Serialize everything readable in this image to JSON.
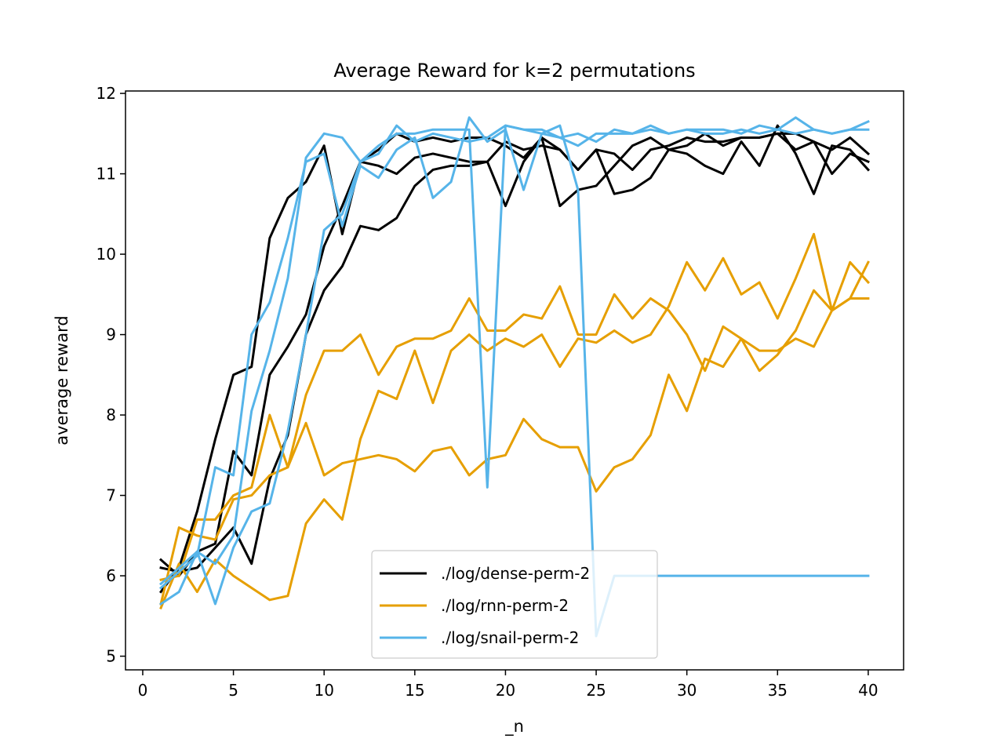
{
  "chart_data": {
    "type": "line",
    "title": "Average Reward for k=2 permutations",
    "xlabel": "_n",
    "ylabel": "average reward",
    "xlim": [
      -0.95,
      41.95
    ],
    "ylim": [
      4.83,
      12.03
    ],
    "xticks": [
      0,
      5,
      10,
      15,
      20,
      25,
      30,
      35,
      40
    ],
    "yticks": [
      5,
      6,
      7,
      8,
      9,
      10,
      11,
      12
    ],
    "grid": false,
    "legend_position": "lower center",
    "legend": [
      {
        "label": "./log/dense-perm-2",
        "color": "#000000"
      },
      {
        "label": "./log/rnn-perm-2",
        "color": "#E69F00"
      },
      {
        "label": "./log/snail-perm-2",
        "color": "#56B4E9"
      }
    ],
    "series": [
      {
        "legend_index": 0,
        "color": "#000000",
        "x": [
          1,
          2,
          3,
          4,
          5,
          6,
          7,
          8,
          9,
          10,
          11,
          12,
          13,
          14,
          15,
          16,
          17,
          18,
          19,
          20,
          21,
          22,
          23,
          24,
          25,
          26,
          27,
          28,
          29,
          30,
          31,
          32,
          33,
          34,
          35,
          36,
          37,
          38,
          39,
          40
        ],
        "y": [
          5.8,
          6.1,
          6.8,
          7.7,
          8.5,
          8.6,
          10.2,
          10.7,
          10.9,
          11.35,
          10.25,
          11.15,
          11.3,
          11.5,
          11.4,
          11.45,
          11.4,
          11.45,
          11.45,
          11.35,
          11.2,
          11.45,
          11.3,
          11.05,
          11.3,
          11.25,
          11.05,
          11.3,
          11.35,
          11.45,
          11.4,
          11.4,
          11.45,
          11.45,
          11.5,
          11.3,
          11.4,
          11.3,
          11.45,
          11.25
        ]
      },
      {
        "legend_index": 0,
        "color": "#000000",
        "x": [
          1,
          2,
          3,
          4,
          5,
          6,
          7,
          8,
          9,
          10,
          11,
          12,
          13,
          14,
          15,
          16,
          17,
          18,
          19,
          20,
          21,
          22,
          23,
          24,
          25,
          26,
          27,
          28,
          29,
          30,
          31,
          32,
          33,
          34,
          35,
          36,
          37,
          38,
          39,
          40
        ],
        "y": [
          6.2,
          6.0,
          6.3,
          6.4,
          7.55,
          7.25,
          8.5,
          8.85,
          9.25,
          10.1,
          10.6,
          11.15,
          11.1,
          11.0,
          11.2,
          11.25,
          11.2,
          11.15,
          11.15,
          10.6,
          11.15,
          11.45,
          10.6,
          10.8,
          10.85,
          11.1,
          11.35,
          11.45,
          11.3,
          11.25,
          11.1,
          11.0,
          11.4,
          11.1,
          11.6,
          11.25,
          10.75,
          11.35,
          11.3,
          11.05
        ]
      },
      {
        "legend_index": 0,
        "color": "#000000",
        "x": [
          1,
          2,
          3,
          4,
          5,
          6,
          7,
          8,
          9,
          10,
          11,
          12,
          13,
          14,
          15,
          16,
          17,
          18,
          19,
          20,
          21,
          22,
          23,
          24,
          25,
          26,
          27,
          28,
          29,
          30,
          31,
          32,
          33,
          34,
          35,
          36,
          37,
          38,
          39,
          40
        ],
        "y": [
          6.1,
          6.05,
          6.1,
          6.35,
          6.6,
          6.15,
          7.2,
          7.75,
          9.0,
          9.55,
          9.85,
          10.35,
          10.3,
          10.45,
          10.85,
          11.05,
          11.1,
          11.1,
          11.15,
          11.4,
          11.3,
          11.35,
          11.3,
          11.05,
          11.3,
          10.75,
          10.8,
          10.95,
          11.3,
          11.35,
          11.5,
          11.35,
          11.45,
          11.45,
          11.5,
          11.5,
          11.4,
          11.0,
          11.25,
          11.15
        ]
      },
      {
        "legend_index": 1,
        "color": "#E69F00",
        "x": [
          1,
          2,
          3,
          4,
          5,
          6,
          7,
          8,
          9,
          10,
          11,
          12,
          13,
          14,
          15,
          16,
          17,
          18,
          19,
          20,
          21,
          22,
          23,
          24,
          25,
          26,
          27,
          28,
          29,
          30,
          31,
          32,
          33,
          34,
          35,
          36,
          37,
          38,
          39,
          40
        ],
        "y": [
          5.65,
          6.6,
          6.5,
          6.45,
          6.95,
          7.0,
          7.25,
          7.35,
          8.25,
          8.8,
          8.8,
          9.0,
          8.5,
          8.85,
          8.95,
          8.95,
          9.05,
          9.45,
          9.05,
          9.05,
          9.25,
          9.2,
          9.6,
          9.0,
          9.0,
          9.5,
          9.2,
          9.45,
          9.3,
          9.0,
          8.55,
          9.1,
          8.95,
          8.8,
          8.8,
          8.95,
          8.85,
          9.3,
          9.9,
          9.65
        ]
      },
      {
        "legend_index": 1,
        "color": "#E69F00",
        "x": [
          1,
          2,
          3,
          4,
          5,
          6,
          7,
          8,
          9,
          10,
          11,
          12,
          13,
          14,
          15,
          16,
          17,
          18,
          19,
          20,
          21,
          22,
          23,
          24,
          25,
          26,
          27,
          28,
          29,
          30,
          31,
          32,
          33,
          34,
          35,
          36,
          37,
          38,
          39,
          40
        ],
        "y": [
          5.95,
          6.0,
          6.7,
          6.7,
          7.0,
          7.1,
          8.0,
          7.35,
          7.9,
          7.25,
          7.4,
          7.45,
          7.5,
          7.45,
          7.3,
          7.55,
          7.6,
          7.25,
          7.45,
          7.5,
          7.95,
          7.7,
          7.6,
          7.6,
          7.05,
          7.35,
          7.45,
          7.75,
          8.5,
          8.05,
          8.7,
          8.6,
          8.95,
          8.55,
          8.75,
          9.05,
          9.55,
          9.3,
          9.45,
          9.45
        ]
      },
      {
        "legend_index": 1,
        "color": "#E69F00",
        "x": [
          1,
          2,
          3,
          4,
          5,
          6,
          7,
          8,
          9,
          10,
          11,
          12,
          13,
          14,
          15,
          16,
          17,
          18,
          19,
          20,
          21,
          22,
          23,
          24,
          25,
          26,
          27,
          28,
          29,
          30,
          31,
          32,
          33,
          34,
          35,
          36,
          37,
          38,
          39,
          40
        ],
        "y": [
          5.6,
          6.15,
          5.8,
          6.2,
          6.0,
          5.85,
          5.7,
          5.75,
          6.65,
          6.95,
          6.7,
          7.7,
          8.3,
          8.2,
          8.8,
          8.15,
          8.8,
          9.0,
          8.8,
          8.95,
          8.85,
          9.0,
          8.6,
          8.95,
          8.9,
          9.05,
          8.9,
          9.0,
          9.35,
          9.9,
          9.55,
          9.95,
          9.5,
          9.65,
          9.2,
          9.7,
          10.25,
          9.3,
          9.45,
          9.9
        ]
      },
      {
        "legend_index": 2,
        "color": "#56B4E9",
        "x": [
          1,
          2,
          3,
          4,
          5,
          6,
          7,
          8,
          9,
          10,
          11,
          12,
          13,
          14,
          15,
          16,
          17,
          18,
          19,
          20,
          21,
          22,
          23,
          24,
          25,
          26,
          27,
          28,
          29,
          30,
          31,
          32,
          33,
          34,
          35,
          36,
          37,
          38,
          39,
          40
        ],
        "y": [
          5.9,
          6.1,
          6.3,
          5.65,
          6.35,
          6.8,
          6.9,
          7.8,
          9.0,
          10.3,
          10.5,
          11.15,
          11.35,
          11.5,
          11.5,
          11.55,
          11.55,
          11.55,
          7.1,
          11.6,
          11.55,
          11.55,
          11.45,
          11.35,
          11.5,
          11.5,
          11.5,
          11.55,
          11.5,
          11.55,
          11.5,
          11.5,
          11.55,
          11.5,
          11.55,
          11.5,
          11.55,
          11.5,
          11.55,
          11.65
        ]
      },
      {
        "legend_index": 2,
        "color": "#56B4E9",
        "x": [
          1,
          2,
          3,
          4,
          5,
          6,
          7,
          8,
          9,
          10,
          11,
          12,
          13,
          14,
          15,
          16,
          17,
          18,
          19,
          20,
          21,
          22,
          23,
          24,
          25,
          26,
          27,
          28,
          29,
          30,
          31,
          32,
          33,
          34,
          35,
          36,
          37,
          38,
          39,
          40
        ],
        "y": [
          5.85,
          6.05,
          6.25,
          7.35,
          7.25,
          9.0,
          9.4,
          10.2,
          11.15,
          11.25,
          10.35,
          11.1,
          10.95,
          11.3,
          11.45,
          10.7,
          10.9,
          11.7,
          11.4,
          11.55,
          10.8,
          11.5,
          11.6,
          10.8,
          5.25,
          6.0,
          6.0,
          6.0,
          6.0,
          6.0,
          6.0,
          6.0,
          6.0,
          6.0,
          6.0,
          6.0,
          6.0,
          6.0,
          6.0,
          6.0
        ]
      },
      {
        "legend_index": 2,
        "color": "#56B4E9",
        "x": [
          1,
          2,
          3,
          4,
          5,
          6,
          7,
          8,
          9,
          10,
          11,
          12,
          13,
          14,
          15,
          16,
          17,
          18,
          19,
          20,
          21,
          22,
          23,
          24,
          25,
          26,
          27,
          28,
          29,
          30,
          31,
          32,
          33,
          34,
          35,
          36,
          37,
          38,
          39,
          40
        ],
        "y": [
          5.65,
          5.8,
          6.3,
          6.15,
          6.5,
          8.05,
          8.8,
          9.7,
          11.2,
          11.5,
          11.45,
          11.15,
          11.25,
          11.6,
          11.4,
          11.5,
          11.45,
          11.4,
          11.45,
          11.6,
          11.55,
          11.5,
          11.45,
          11.5,
          11.4,
          11.55,
          11.5,
          11.6,
          11.5,
          11.55,
          11.55,
          11.55,
          11.5,
          11.6,
          11.55,
          11.7,
          11.55,
          11.5,
          11.55,
          11.55
        ]
      }
    ]
  }
}
